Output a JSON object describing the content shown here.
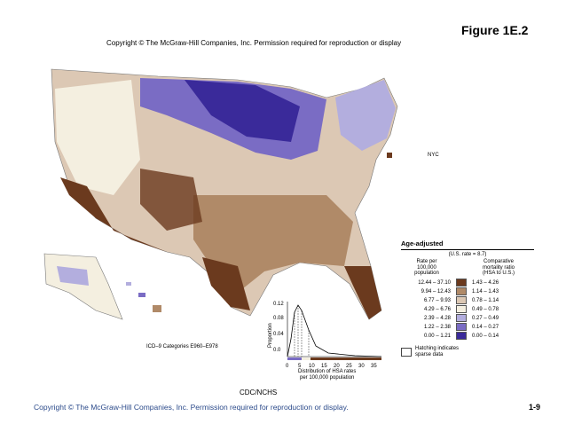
{
  "figure_label": "Figure 1E.2",
  "top_copyright": "Copyright © The McGraw-Hill Companies, Inc. Permission required for reproduction or display",
  "bottom_copyright": "Copyright © The McGraw-Hill Companies, Inc. Permission required for reproduction or display.",
  "slide_number": "1-9",
  "source": "CDC/NCHS",
  "icd_note": "ICD–9 Categories E960–E978",
  "nyc_label": "NYC",
  "legend": {
    "title": "Age-adjusted",
    "us_rate": "(U.S. rate = 8.7)",
    "rate_header": "Rate per\n100,000\npopulation",
    "ratio_header": "Comparative\nmortality ratio\n(HSA to U.S.)",
    "rows": [
      {
        "range": "12.44 – 37.10",
        "ratio": "1.43 – 4.26",
        "color": "#6b3a1e"
      },
      {
        "range": "9.94 – 12.43",
        "ratio": "1.14 – 1.43",
        "color": "#b08a68"
      },
      {
        "range": "6.77 – 9.93",
        "ratio": "0.78 – 1.14",
        "color": "#dcc8b4"
      },
      {
        "range": "4.29 – 6.76",
        "ratio": "0.49 – 0.78",
        "color": "#f4efe0"
      },
      {
        "range": "2.39 – 4.28",
        "ratio": "0.27 – 0.49",
        "color": "#b3aede"
      },
      {
        "range": "1.22 – 2.38",
        "ratio": "0.14 – 0.27",
        "color": "#7a6cc4"
      },
      {
        "range": "0.00 – 1.21",
        "ratio": "0.00 – 0.14",
        "color": "#3a2a9a"
      }
    ],
    "hatch_note": "Hatching indicates\nsparse data"
  },
  "histogram": {
    "ylabel": "Proportion",
    "xlabel": "Distribution of HSA rates\nper 100,000 population",
    "yticks": [
      "0.12",
      "0.08",
      "0.04",
      "0.0"
    ],
    "xticks": [
      "0",
      "5",
      "10",
      "15",
      "20",
      "25",
      "30",
      "35"
    ]
  },
  "colors": {
    "dark_brown": "#6b3a1e",
    "mid_brown": "#b08a68",
    "light_brown": "#dcc8b4",
    "cream": "#f4efe0",
    "light_purple": "#b3aede",
    "mid_purple": "#7a6cc4",
    "dark_purple": "#3a2a9a",
    "copyright_blue": "#2b4a8a"
  }
}
